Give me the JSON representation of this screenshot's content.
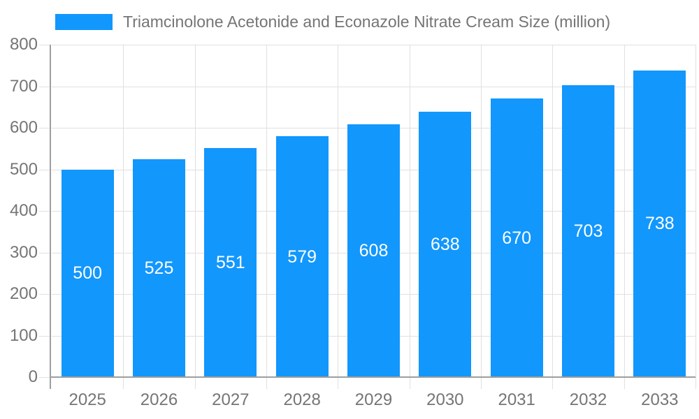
{
  "legend": {
    "label": "Triamcinolone Acetonide and Econazole Nitrate Cream Size (million)"
  },
  "chart_data": {
    "type": "bar",
    "categories": [
      "2025",
      "2026",
      "2027",
      "2028",
      "2029",
      "2030",
      "2031",
      "2032",
      "2033"
    ],
    "values": [
      500,
      525,
      551,
      579,
      608,
      638,
      670,
      703,
      738
    ],
    "title": "Triamcinolone Acetonide and Econazole Nitrate Cream Size (million)",
    "xlabel": "",
    "ylabel": "",
    "ylim": [
      0,
      800
    ],
    "ytick_step": 100,
    "ytick_labels": [
      "0",
      "100",
      "200",
      "300",
      "400",
      "500",
      "600",
      "700",
      "800"
    ],
    "grid": true,
    "legend_position": "top-left",
    "value_label_position": "inside-center",
    "colors": {
      "bar": "#1297FD",
      "value_label": "#FFFFFF",
      "axis_text": "#757575",
      "grid": "#E0E0E0",
      "axis_line": "#9E9E9E",
      "background": "#FFFFFF"
    }
  }
}
